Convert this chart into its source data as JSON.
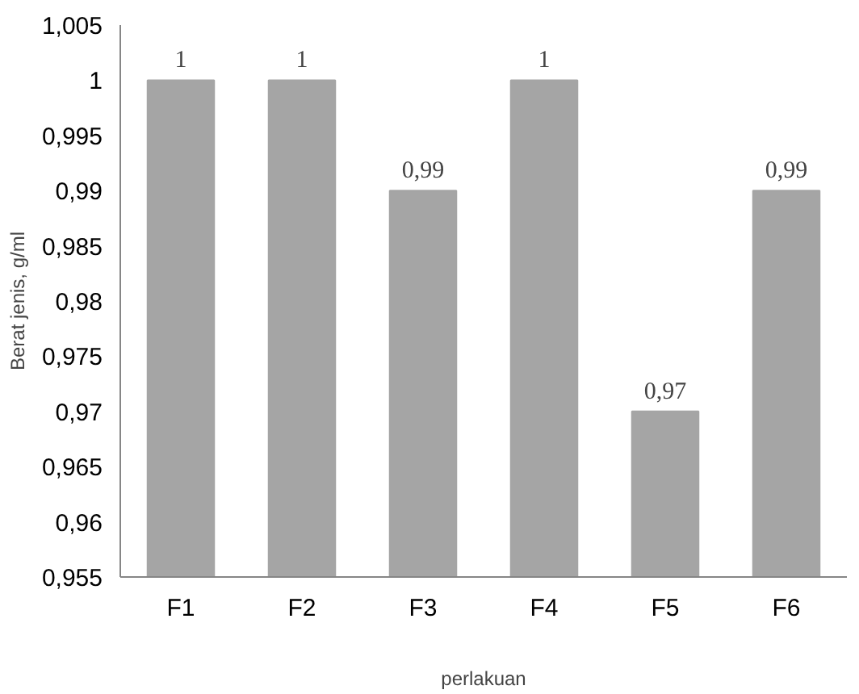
{
  "chart_data": {
    "type": "bar",
    "xlabel": "perlakuan",
    "ylabel": "Berat jenis, g/ml",
    "categories": [
      "F1",
      "F2",
      "F3",
      "F4",
      "F5",
      "F6"
    ],
    "values": [
      1,
      1,
      0.99,
      1,
      0.97,
      0.99
    ],
    "value_labels": [
      "1",
      "1",
      "0,99",
      "1",
      "0,97",
      "0,99"
    ],
    "color": "#a5a5a5",
    "ylim": [
      0.955,
      1.005
    ],
    "yticks": [
      {
        "value": 0.955,
        "label": "0,955"
      },
      {
        "value": 0.96,
        "label": "0,96"
      },
      {
        "value": 0.965,
        "label": "0,965"
      },
      {
        "value": 0.97,
        "label": "0,97"
      },
      {
        "value": 0.975,
        "label": "0,975"
      },
      {
        "value": 0.98,
        "label": "0,98"
      },
      {
        "value": 0.985,
        "label": "0,985"
      },
      {
        "value": 0.99,
        "label": "0,99"
      },
      {
        "value": 0.995,
        "label": "0,995"
      },
      {
        "value": 1,
        "label": "1"
      },
      {
        "value": 1.005,
        "label": "1,005"
      }
    ],
    "grid": false
  }
}
